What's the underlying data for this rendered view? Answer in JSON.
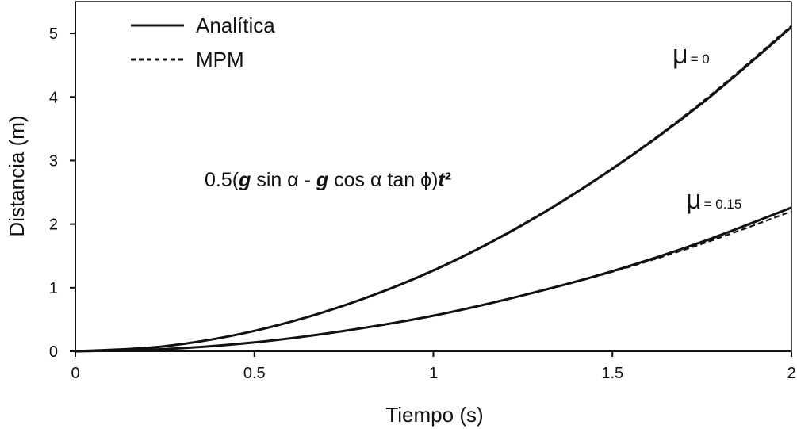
{
  "chart_data": {
    "type": "line",
    "xlabel": "Tiempo (s)",
    "ylabel": "Distancia (m)",
    "xlim": [
      0,
      2
    ],
    "ylim": [
      0,
      5.5
    ],
    "x_ticks": [
      "0",
      "0.5",
      "1",
      "1.5",
      "2"
    ],
    "y_ticks": [
      "0",
      "1",
      "2",
      "3",
      "4",
      "5"
    ],
    "legend": {
      "position": "top-left",
      "entries": [
        {
          "label": "Analítica",
          "style": "solid"
        },
        {
          "label": "MPM",
          "style": "dashed"
        }
      ]
    },
    "formula": {
      "prefix": "0.5(",
      "g1": "g",
      "mid1": " sin α - ",
      "g2": "g",
      "mid2": " cos α tan ϕ)",
      "t": "t",
      "sup": "²"
    },
    "annotations": [
      {
        "symbol": "μ",
        "value": "= 0"
      },
      {
        "symbol": "μ",
        "value": "= 0.15"
      }
    ],
    "series": [
      {
        "name": "Analítica",
        "case": "μ = 0",
        "style": "solid",
        "x": [
          0,
          0.25,
          0.5,
          0.75,
          1.0,
          1.25,
          1.5,
          1.75,
          2.0
        ],
        "y": [
          0,
          0.08,
          0.32,
          0.72,
          1.27,
          1.99,
          2.87,
          3.9,
          5.1
        ]
      },
      {
        "name": "MPM",
        "case": "μ = 0",
        "style": "dashed",
        "x": [
          0,
          0.25,
          0.5,
          0.75,
          1.0,
          1.25,
          1.5,
          1.75,
          2.0
        ],
        "y": [
          0,
          0.08,
          0.32,
          0.72,
          1.28,
          2.0,
          2.88,
          3.92,
          5.12
        ]
      },
      {
        "name": "Analítica",
        "case": "μ = 0.15",
        "style": "solid",
        "x": [
          0,
          0.25,
          0.5,
          0.75,
          1.0,
          1.25,
          1.5,
          1.75,
          2.0
        ],
        "y": [
          0,
          0.035,
          0.14,
          0.32,
          0.56,
          0.88,
          1.26,
          1.72,
          2.26
        ]
      },
      {
        "name": "MPM",
        "case": "μ = 0.15",
        "style": "dashed",
        "x": [
          0,
          0.25,
          0.5,
          0.75,
          1.0,
          1.25,
          1.5,
          1.75,
          2.0
        ],
        "y": [
          0,
          0.035,
          0.14,
          0.32,
          0.56,
          0.88,
          1.25,
          1.69,
          2.2
        ]
      }
    ]
  }
}
